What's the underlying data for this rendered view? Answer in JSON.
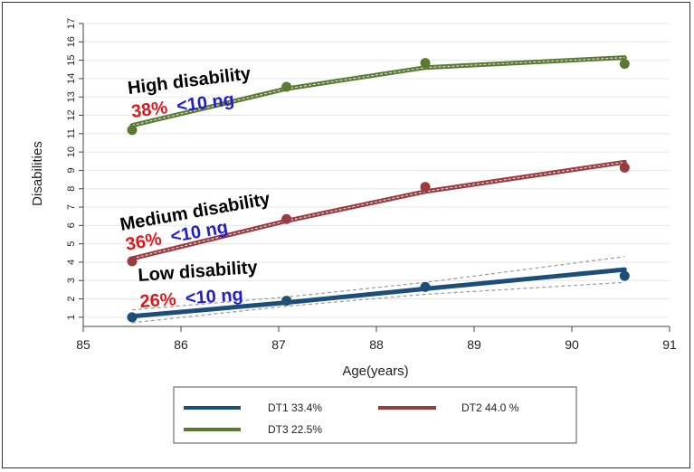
{
  "chart_data": {
    "type": "line",
    "xlabel": "Age(years)",
    "ylabel": "Disabilities",
    "xlim": [
      85,
      91
    ],
    "ylim": [
      0.5,
      17
    ],
    "xticks": [
      85,
      86,
      87,
      88,
      89,
      90,
      91
    ],
    "yticks": [
      1,
      2,
      3,
      4,
      5,
      6,
      7,
      8,
      9,
      10,
      11,
      12,
      13,
      14,
      15,
      16,
      17
    ],
    "grid": true,
    "series": [
      {
        "name": "DT1 33.4%",
        "key": "dt1",
        "color": "#1d4e79",
        "points_x": [
          85.5,
          87.08,
          88.5,
          90.54
        ],
        "points_y": [
          1.0,
          1.9,
          2.65,
          3.25
        ],
        "fit_x": [
          85.5,
          87.08,
          88.5,
          90.54
        ],
        "fit_y": [
          1.05,
          1.8,
          2.55,
          3.6
        ],
        "ci_lower": [
          0.7,
          1.6,
          2.25,
          2.9
        ],
        "ci_upper": [
          1.4,
          2.1,
          2.9,
          4.3
        ],
        "group_label": "Low disability",
        "pct": "26%",
        "threshold": "<10 ng"
      },
      {
        "name": "DT2 44.0 %",
        "key": "dt2",
        "color": "#9b3a3f",
        "points_x": [
          85.5,
          87.08,
          88.5,
          90.54
        ],
        "points_y": [
          4.05,
          6.35,
          8.1,
          9.15
        ],
        "fit_x": [
          85.5,
          87.08,
          88.5,
          90.54
        ],
        "fit_y": [
          4.2,
          6.25,
          7.85,
          9.45
        ],
        "group_label": "Medium disability",
        "pct": "36%",
        "threshold": "<10 ng"
      },
      {
        "name": "DT3 22.5%",
        "key": "dt3",
        "color": "#5a7a32",
        "points_x": [
          85.5,
          87.08,
          88.5,
          90.54
        ],
        "points_y": [
          11.2,
          13.55,
          14.85,
          14.8
        ],
        "fit_x": [
          85.5,
          87.08,
          88.5,
          90.54
        ],
        "fit_y": [
          11.45,
          13.45,
          14.6,
          15.15
        ],
        "group_label": "High disability",
        "pct": "38%",
        "threshold": "<10 ng"
      }
    ],
    "colors": {
      "pct": "#e3171b",
      "threshold": "#1f1fcc",
      "ci": "#9a9a9a"
    }
  }
}
